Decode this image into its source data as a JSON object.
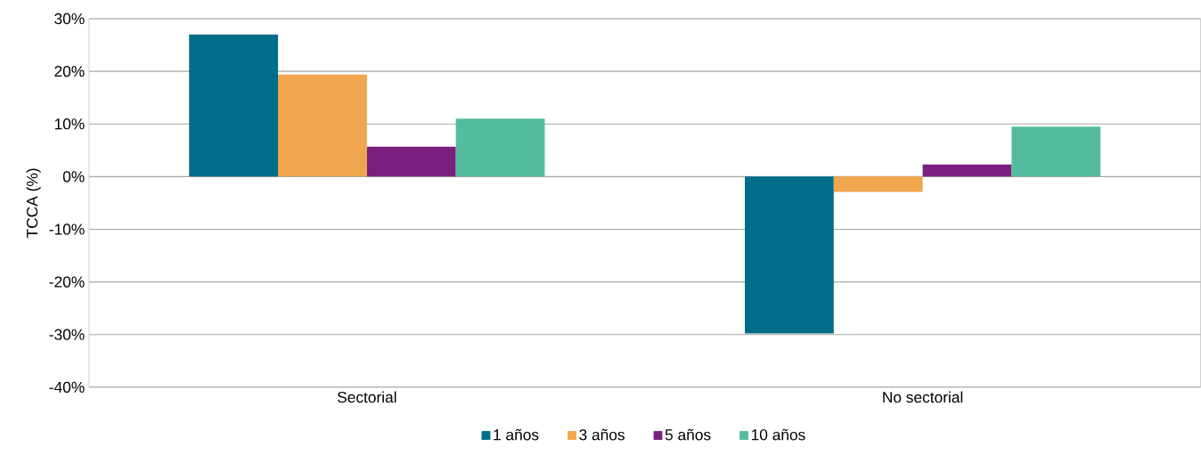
{
  "chart_data": {
    "type": "bar",
    "ylabel": "TCCA (%)",
    "categories": [
      "Sectorial",
      "No sectorial"
    ],
    "series": [
      {
        "name": "1 años",
        "color": "#006e8a",
        "values": [
          27.0,
          -29.8
        ]
      },
      {
        "name": "3 años",
        "color": "#f0a64c",
        "values": [
          19.4,
          -2.9
        ]
      },
      {
        "name": "5 años",
        "color": "#7a1f7d",
        "values": [
          5.7,
          2.3
        ]
      },
      {
        "name": "10 años",
        "color": "#55bb9f",
        "values": [
          11.0,
          9.5
        ]
      }
    ],
    "ylim": [
      -40,
      30
    ],
    "yticks": [
      {
        "value": -40,
        "label": "-40%"
      },
      {
        "value": -30,
        "label": "-30%"
      },
      {
        "value": -20,
        "label": "-20%"
      },
      {
        "value": -10,
        "label": "-10%"
      },
      {
        "value": 0,
        "label": "0%"
      },
      {
        "value": 10,
        "label": "10%"
      },
      {
        "value": 20,
        "label": "20%"
      },
      {
        "value": 30,
        "label": "30%"
      }
    ],
    "grid": "y",
    "legend": "bottom"
  }
}
